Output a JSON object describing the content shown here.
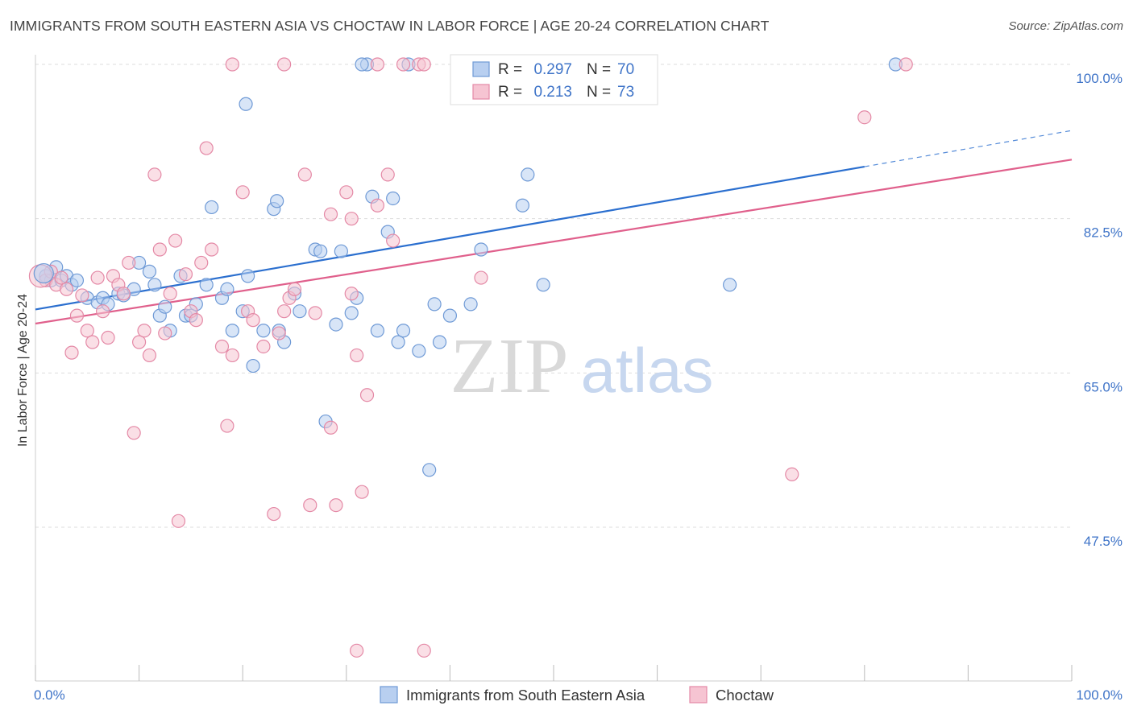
{
  "header": {
    "title": "IMMIGRANTS FROM SOUTH EASTERN ASIA VS CHOCTAW IN LABOR FORCE | AGE 20-24 CORRELATION CHART",
    "source": "Source: ZipAtlas.com"
  },
  "watermark": {
    "zip": "ZIP",
    "atlas": "atlas"
  },
  "colors": {
    "blue_fill": "#b8cff0",
    "blue_stroke": "#6f9ad6",
    "blue_line": "#2b6fcf",
    "pink_fill": "#f6c4d2",
    "pink_stroke": "#e489a6",
    "pink_line": "#e0608c",
    "axis_text": "#3f74c8",
    "grid": "#dddddd"
  },
  "chart_data": {
    "type": "scatter",
    "ylabel": "In Labor Force | Age 20-24",
    "xlim": [
      0,
      100
    ],
    "ylim": [
      30,
      105
    ],
    "x_tick_labels": [
      {
        "value": 0,
        "label": "0.0%"
      },
      {
        "value": 100,
        "label": "100.0%"
      }
    ],
    "y_ticks": [
      {
        "value": 100,
        "label": "100.0%"
      },
      {
        "value": 82.5,
        "label": "82.5%"
      },
      {
        "value": 65,
        "label": "65.0%"
      },
      {
        "value": 47.5,
        "label": "47.5%"
      }
    ],
    "grid": true,
    "legend_position": "top-center",
    "series": [
      {
        "name": "Immigrants from South Eastern Asia",
        "color": "blue",
        "R": "0.297",
        "N": "70",
        "R_label": "R =",
        "N_label": "N =",
        "trend": {
          "x0": 0,
          "y0": 72.2,
          "x1": 80,
          "y1": 88.4,
          "dashed_to_x": 100,
          "dashed_to_y": 92.5
        },
        "points": [
          [
            1,
            76
          ],
          [
            1.5,
            75.5
          ],
          [
            2,
            77
          ],
          [
            2.5,
            75.5
          ],
          [
            3,
            76
          ],
          [
            3.5,
            75
          ],
          [
            4,
            75.5
          ],
          [
            5,
            73.5
          ],
          [
            6,
            73
          ],
          [
            6.5,
            73.5
          ],
          [
            7,
            72.8
          ],
          [
            8,
            74
          ],
          [
            8.5,
            73.8
          ],
          [
            9.5,
            74.5
          ],
          [
            10,
            77.5
          ],
          [
            11,
            76.5
          ],
          [
            11.5,
            75
          ],
          [
            12,
            71.5
          ],
          [
            12.5,
            72.5
          ],
          [
            13,
            69.8
          ],
          [
            14,
            76
          ],
          [
            14.5,
            71.5
          ],
          [
            15,
            71.5
          ],
          [
            15.5,
            72.8
          ],
          [
            16.5,
            75
          ],
          [
            17,
            83.8
          ],
          [
            18,
            73.5
          ],
          [
            18.5,
            74.5
          ],
          [
            19,
            69.8
          ],
          [
            20,
            72
          ],
          [
            20.5,
            76
          ],
          [
            21,
            65.8
          ],
          [
            22,
            69.8
          ],
          [
            23,
            83.6
          ],
          [
            23.5,
            69.8
          ],
          [
            24,
            68.5
          ],
          [
            20.3,
            95.5
          ],
          [
            23.3,
            84.5
          ],
          [
            25,
            74
          ],
          [
            25.5,
            72
          ],
          [
            27,
            79
          ],
          [
            27.5,
            78.8
          ],
          [
            28,
            59.5
          ],
          [
            29,
            70.5
          ],
          [
            29.5,
            78.8
          ],
          [
            30.5,
            71.8
          ],
          [
            31,
            73.5
          ],
          [
            32.5,
            85
          ],
          [
            33,
            69.8
          ],
          [
            34,
            81
          ],
          [
            34.5,
            84.8
          ],
          [
            35,
            68.5
          ],
          [
            35.5,
            69.8
          ],
          [
            37,
            67.5
          ],
          [
            38,
            54
          ],
          [
            38.5,
            72.8
          ],
          [
            39,
            68.5
          ],
          [
            40,
            71.5
          ],
          [
            42,
            72.8
          ],
          [
            43,
            79
          ],
          [
            47,
            84
          ],
          [
            49,
            75
          ],
          [
            32,
            100
          ],
          [
            36,
            100
          ],
          [
            42,
            100
          ],
          [
            31.5,
            100
          ],
          [
            67,
            75
          ],
          [
            83,
            100
          ],
          [
            47.5,
            87.5
          ],
          [
            41,
            100
          ]
        ]
      },
      {
        "name": "Choctaw",
        "color": "pink",
        "R": "0.213",
        "N": "73",
        "R_label": "R =",
        "N_label": "N =",
        "trend": {
          "x0": 0,
          "y0": 70.6,
          "x1": 100,
          "y1": 89.2
        },
        "points": [
          [
            1,
            75.5
          ],
          [
            1.5,
            76.5
          ],
          [
            2,
            75
          ],
          [
            2.5,
            75.8
          ],
          [
            3,
            74.5
          ],
          [
            3.5,
            67.3
          ],
          [
            4,
            71.5
          ],
          [
            4.5,
            73.8
          ],
          [
            5,
            69.8
          ],
          [
            5.5,
            68.5
          ],
          [
            6,
            75.8
          ],
          [
            6.5,
            72
          ],
          [
            7,
            69
          ],
          [
            7.5,
            76
          ],
          [
            8,
            75
          ],
          [
            8.5,
            74
          ],
          [
            9,
            77.5
          ],
          [
            9.5,
            58.2
          ],
          [
            10,
            68.5
          ],
          [
            10.5,
            69.8
          ],
          [
            11,
            67
          ],
          [
            11.5,
            87.5
          ],
          [
            12,
            79
          ],
          [
            12.5,
            69.5
          ],
          [
            13,
            74
          ],
          [
            13.5,
            80
          ],
          [
            13.8,
            48.2
          ],
          [
            14.5,
            76.2
          ],
          [
            15,
            72
          ],
          [
            15.5,
            71
          ],
          [
            16,
            77.5
          ],
          [
            16.5,
            90.5
          ],
          [
            17,
            79
          ],
          [
            18,
            68
          ],
          [
            18.5,
            59
          ],
          [
            19,
            67
          ],
          [
            20,
            85.5
          ],
          [
            20.5,
            72
          ],
          [
            21,
            71
          ],
          [
            22,
            68
          ],
          [
            23,
            49
          ],
          [
            23.5,
            69.5
          ],
          [
            24,
            72
          ],
          [
            24.5,
            73.5
          ],
          [
            25,
            74.5
          ],
          [
            26,
            87.5
          ],
          [
            26.5,
            50
          ],
          [
            27,
            71.8
          ],
          [
            28.5,
            58.8
          ],
          [
            29,
            50
          ],
          [
            30,
            85.5
          ],
          [
            30.5,
            74
          ],
          [
            31,
            67
          ],
          [
            31.5,
            51.5
          ],
          [
            32,
            62.5
          ],
          [
            33,
            84
          ],
          [
            34,
            87.5
          ],
          [
            34.5,
            80
          ],
          [
            35.5,
            100
          ],
          [
            31,
            33.5
          ],
          [
            37.5,
            33.5
          ],
          [
            19,
            100
          ],
          [
            24,
            100
          ],
          [
            33,
            100
          ],
          [
            37,
            100
          ],
          [
            37.5,
            100
          ],
          [
            43,
            75.8
          ],
          [
            48,
            100
          ],
          [
            84,
            100
          ],
          [
            73,
            53.5
          ],
          [
            80,
            94
          ],
          [
            28.5,
            83
          ],
          [
            30.5,
            82.5
          ]
        ]
      }
    ]
  },
  "legend": {
    "bottom": [
      {
        "label": "Immigrants from South Eastern Asia",
        "color": "blue"
      },
      {
        "label": "Choctaw",
        "color": "pink"
      }
    ]
  }
}
